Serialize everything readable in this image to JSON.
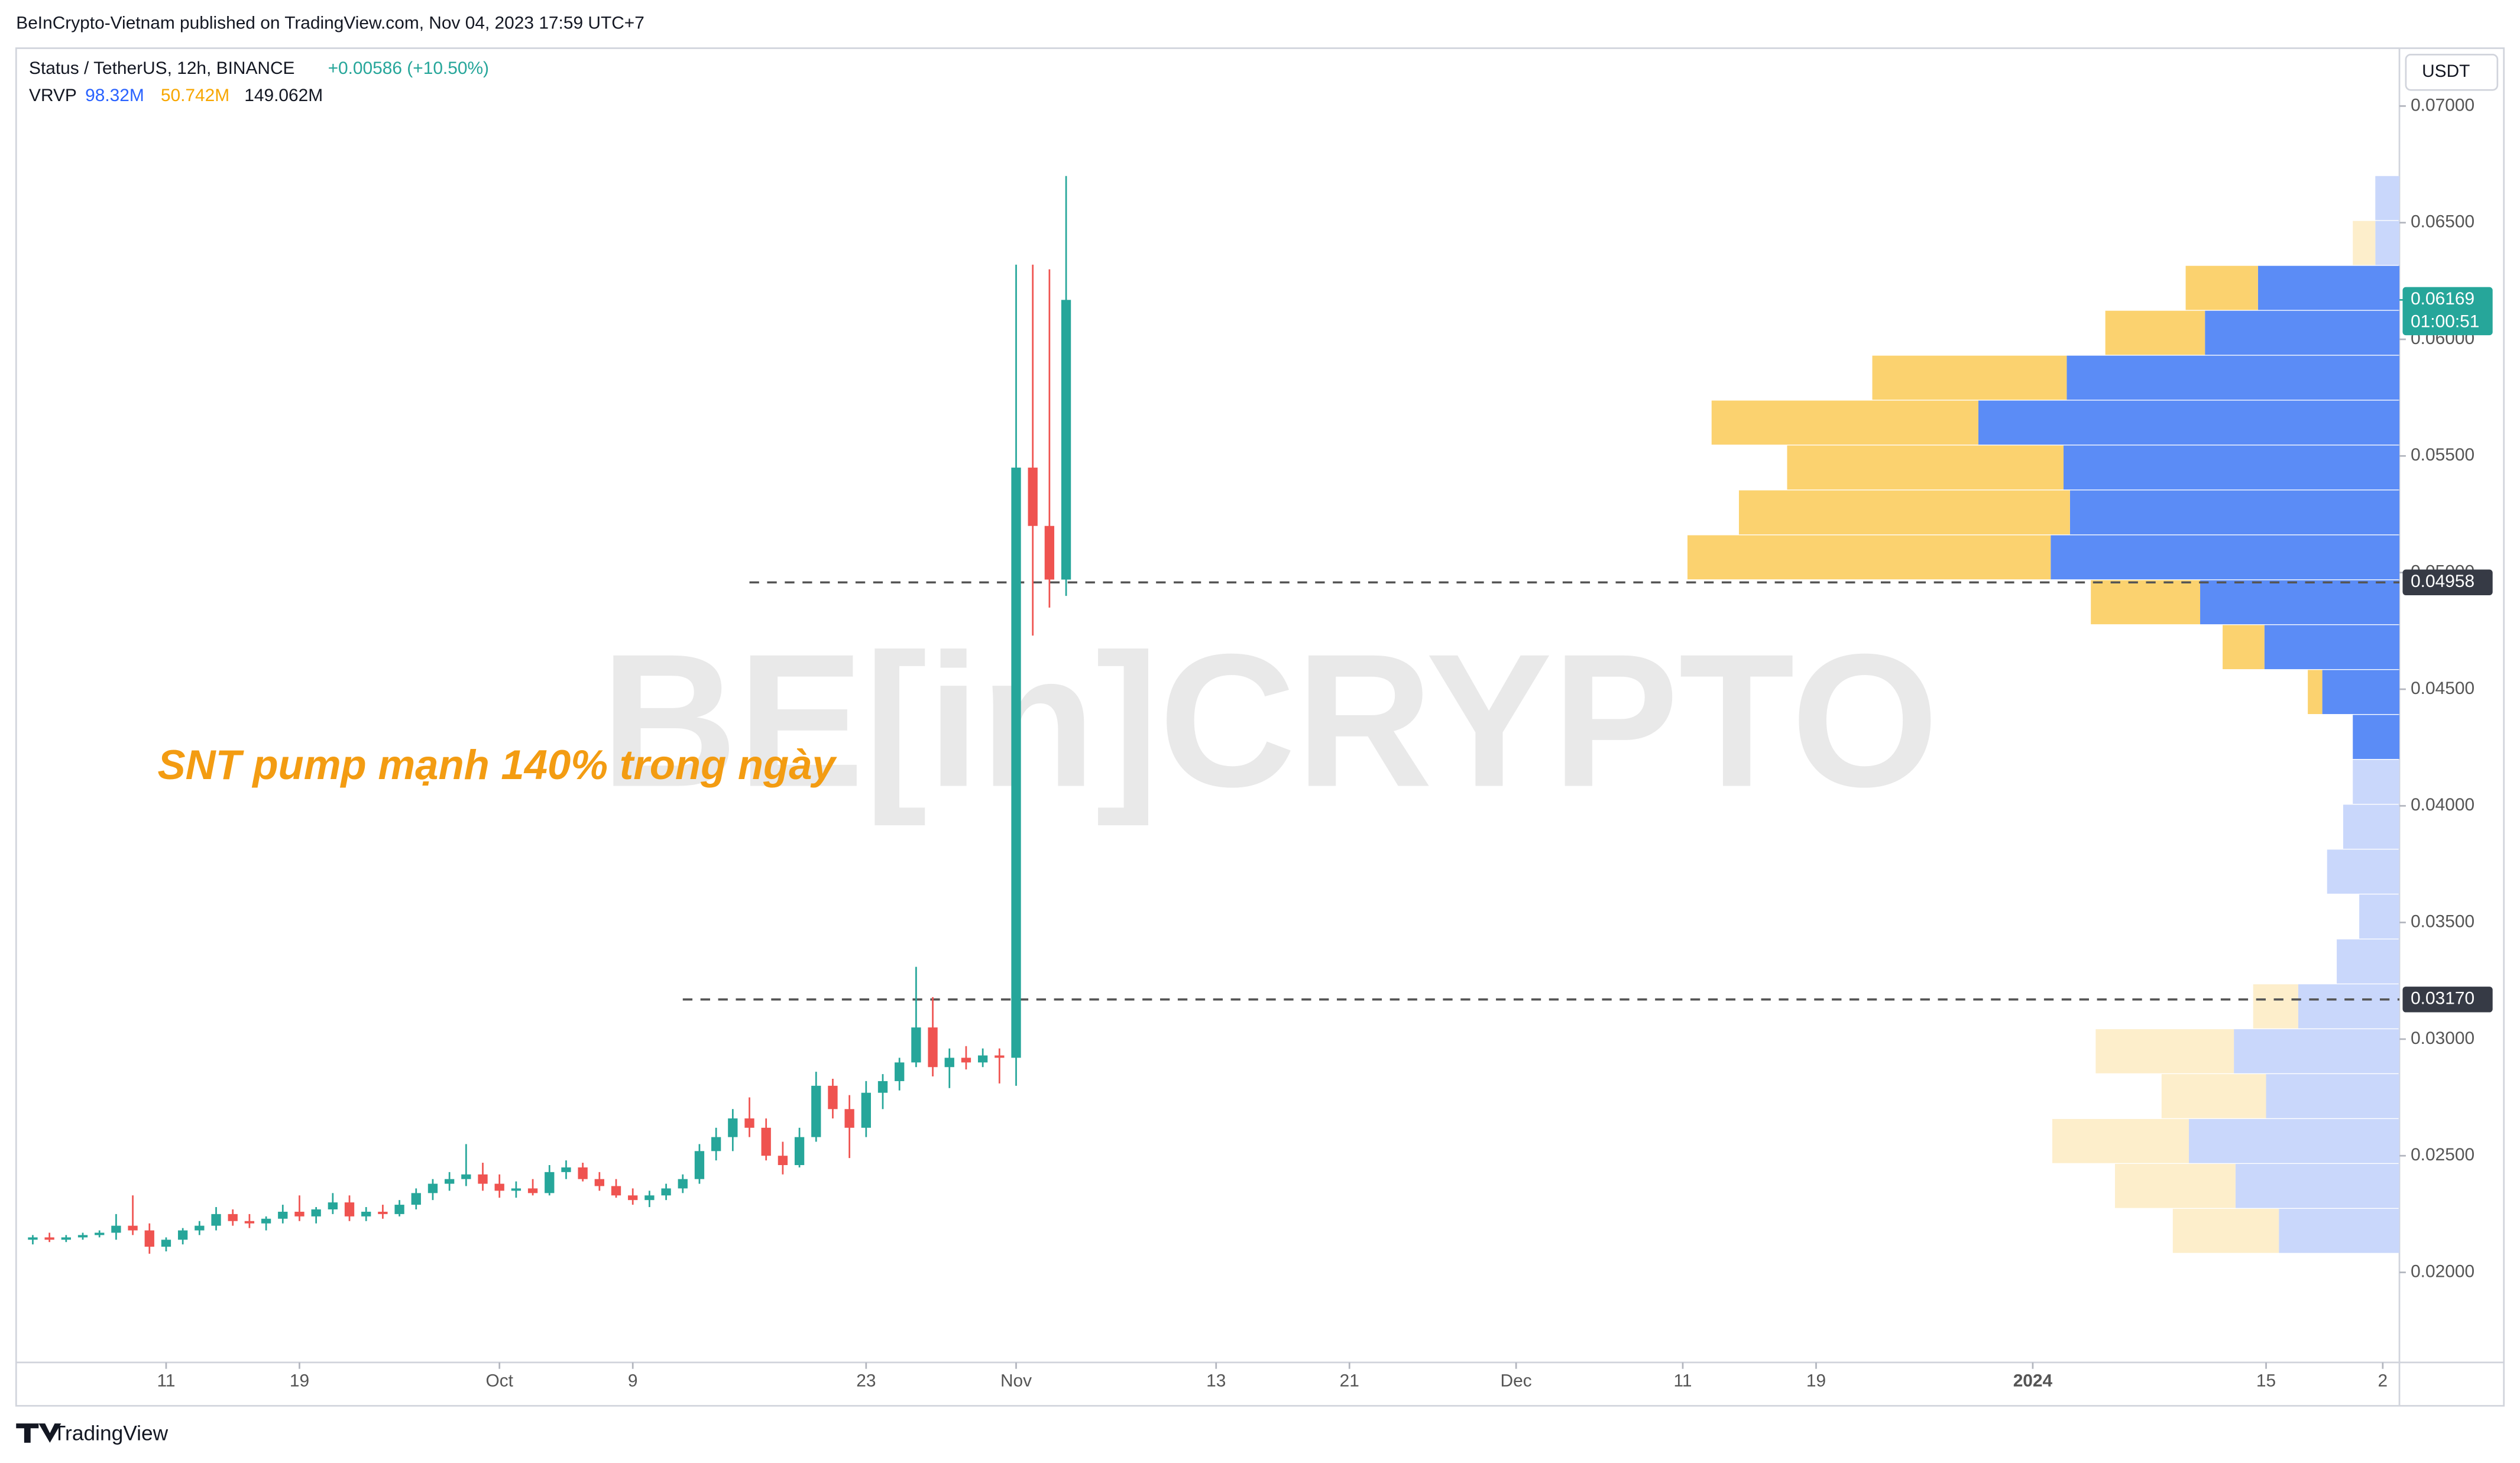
{
  "header": {
    "published": "BeInCrypto-Vietnam published on TradingView.com, Nov 04, 2023 17:59 UTC+7",
    "symbol": "Status / TetherUS, 12h, BINANCE",
    "change": "+0.00586 (+10.50%)",
    "vrvp": {
      "label": "VRVP",
      "up": "98.32M",
      "down": "50.742M",
      "total": "149.062M"
    },
    "currency": "USDT"
  },
  "footer": "TradingView",
  "chart_data": {
    "type": "candlestick",
    "annotation": "SNT pump mạnh 140% trong ngày",
    "watermark": "BE[in]CRYPTO",
    "up_color": "#26a69a",
    "down_color": "#ef5350",
    "x": [
      "2023-09-03",
      "2023-09-04",
      "2023-09-05",
      "2023-09-06",
      "2023-09-07",
      "2023-09-08",
      "2023-09-09",
      "2023-09-10",
      "2023-09-11",
      "2023-09-12",
      "2023-09-13",
      "2023-09-14",
      "2023-09-15",
      "2023-09-16",
      "2023-09-17",
      "2023-09-18",
      "2023-09-19",
      "2023-09-20",
      "2023-09-21",
      "2023-09-22",
      "2023-09-23",
      "2023-09-24",
      "2023-09-25",
      "2023-09-26",
      "2023-09-27",
      "2023-09-28",
      "2023-09-29",
      "2023-09-30",
      "2023-10-01",
      "2023-10-02",
      "2023-10-03",
      "2023-10-04",
      "2023-10-05",
      "2023-10-06",
      "2023-10-07",
      "2023-10-08",
      "2023-10-09",
      "2023-10-10",
      "2023-10-11",
      "2023-10-12",
      "2023-10-13",
      "2023-10-14",
      "2023-10-15",
      "2023-10-16",
      "2023-10-17",
      "2023-10-18",
      "2023-10-19",
      "2023-10-20",
      "2023-10-21",
      "2023-10-22",
      "2023-10-23",
      "2023-10-24",
      "2023-10-25",
      "2023-10-26",
      "2023-10-27",
      "2023-10-28",
      "2023-10-29",
      "2023-10-30",
      "2023-10-31",
      "2023-11-01",
      "2023-11-02",
      "2023-11-03",
      "2023-11-04"
    ],
    "open": [
      0.0214,
      0.0215,
      0.0214,
      0.0215,
      0.0216,
      0.0217,
      0.022,
      0.0218,
      0.0211,
      0.0214,
      0.0218,
      0.022,
      0.0225,
      0.0222,
      0.0221,
      0.0223,
      0.0226,
      0.0224,
      0.0227,
      0.023,
      0.0224,
      0.0226,
      0.0225,
      0.0229,
      0.0234,
      0.0238,
      0.024,
      0.0242,
      0.0238,
      0.0235,
      0.0236,
      0.0234,
      0.0243,
      0.0245,
      0.024,
      0.0237,
      0.0233,
      0.0231,
      0.0233,
      0.0236,
      0.024,
      0.0252,
      0.0258,
      0.0266,
      0.0262,
      0.025,
      0.0246,
      0.0258,
      0.028,
      0.027,
      0.0262,
      0.0277,
      0.0282,
      0.029,
      0.0305,
      0.0288,
      0.0292,
      0.029,
      0.0293,
      0.0292,
      0.0545,
      0.052,
      0.0497
    ],
    "high": [
      0.0216,
      0.0217,
      0.0216,
      0.0217,
      0.0218,
      0.0225,
      0.0233,
      0.0221,
      0.0215,
      0.0219,
      0.0222,
      0.0228,
      0.0227,
      0.0225,
      0.0224,
      0.0229,
      0.0233,
      0.0228,
      0.0234,
      0.0233,
      0.0228,
      0.0229,
      0.0231,
      0.0236,
      0.024,
      0.0243,
      0.0255,
      0.0247,
      0.0242,
      0.0239,
      0.024,
      0.0246,
      0.0248,
      0.0247,
      0.0243,
      0.024,
      0.0236,
      0.0235,
      0.0238,
      0.0242,
      0.0255,
      0.0262,
      0.027,
      0.0275,
      0.0266,
      0.0256,
      0.0262,
      0.0286,
      0.0283,
      0.0276,
      0.0282,
      0.0285,
      0.0292,
      0.0331,
      0.0318,
      0.0296,
      0.0297,
      0.0296,
      0.0296,
      0.0632,
      0.0632,
      0.063,
      0.067
    ],
    "low": [
      0.0212,
      0.0213,
      0.0213,
      0.0214,
      0.0215,
      0.0214,
      0.0216,
      0.0208,
      0.0209,
      0.0212,
      0.0216,
      0.0218,
      0.022,
      0.0219,
      0.0218,
      0.0221,
      0.0222,
      0.0221,
      0.0225,
      0.0222,
      0.0222,
      0.0223,
      0.0224,
      0.0227,
      0.0231,
      0.0235,
      0.0237,
      0.0235,
      0.0232,
      0.0232,
      0.0233,
      0.0233,
      0.024,
      0.0239,
      0.0235,
      0.0232,
      0.0229,
      0.0228,
      0.0231,
      0.0234,
      0.0238,
      0.0248,
      0.0252,
      0.0258,
      0.0248,
      0.0242,
      0.0245,
      0.0256,
      0.0266,
      0.0249,
      0.0258,
      0.027,
      0.0278,
      0.0288,
      0.0284,
      0.0279,
      0.0287,
      0.0288,
      0.0281,
      0.028,
      0.0473,
      0.0485,
      0.049
    ],
    "close": [
      0.0215,
      0.0214,
      0.0215,
      0.0216,
      0.0217,
      0.022,
      0.0218,
      0.0211,
      0.0214,
      0.0218,
      0.022,
      0.0225,
      0.0222,
      0.0221,
      0.0223,
      0.0226,
      0.0224,
      0.0227,
      0.023,
      0.0224,
      0.0226,
      0.0225,
      0.0229,
      0.0234,
      0.0238,
      0.024,
      0.0242,
      0.0238,
      0.0235,
      0.0236,
      0.0234,
      0.0243,
      0.0245,
      0.024,
      0.0237,
      0.0233,
      0.0231,
      0.0233,
      0.0236,
      0.024,
      0.0252,
      0.0258,
      0.0266,
      0.0262,
      0.025,
      0.0246,
      0.0258,
      0.028,
      0.027,
      0.0262,
      0.0277,
      0.0282,
      0.029,
      0.0305,
      0.0288,
      0.0292,
      0.029,
      0.0293,
      0.0292,
      0.0545,
      0.052,
      0.0497,
      0.06169
    ],
    "xlim": [
      "2023-09-02",
      "2024-01-23"
    ],
    "xticks": [
      {
        "value": "2023-09-11",
        "label": "11"
      },
      {
        "value": "2023-09-19",
        "label": "19"
      },
      {
        "value": "2023-10-01",
        "label": "Oct"
      },
      {
        "value": "2023-10-09",
        "label": "9"
      },
      {
        "value": "2023-10-23",
        "label": "23"
      },
      {
        "value": "2023-11-01",
        "label": "Nov"
      },
      {
        "value": "2023-11-13",
        "label": "13"
      },
      {
        "value": "2023-11-21",
        "label": "21"
      },
      {
        "value": "2023-12-01",
        "label": "Dec"
      },
      {
        "value": "2023-12-11",
        "label": "11"
      },
      {
        "value": "2023-12-19",
        "label": "19"
      },
      {
        "value": "2024-01-01",
        "label": "2024"
      },
      {
        "value": "2024-01-15",
        "label": "15"
      },
      {
        "value": "2024-01-22",
        "label": "2"
      }
    ],
    "ylim": [
      0.01614,
      0.07248
    ],
    "yticks": [
      {
        "value": 0.02,
        "label": "0.02000"
      },
      {
        "value": 0.025,
        "label": "0.02500"
      },
      {
        "value": 0.03,
        "label": "0.03000"
      },
      {
        "value": 0.035,
        "label": "0.03500"
      },
      {
        "value": 0.04,
        "label": "0.04000"
      },
      {
        "value": 0.045,
        "label": "0.04500"
      },
      {
        "value": 0.05,
        "label": "0.05000"
      },
      {
        "value": 0.055,
        "label": "0.05500"
      },
      {
        "value": 0.06,
        "label": "0.06000"
      },
      {
        "value": 0.065,
        "label": "0.06500"
      },
      {
        "value": 0.07,
        "label": "0.07000"
      }
    ],
    "grid": false,
    "hlines": [
      {
        "value": 0.04958,
        "label": "0.04958",
        "from": "2023-10-16"
      },
      {
        "value": 0.0317,
        "label": "0.03170",
        "from": "2023-10-12"
      }
    ],
    "last_price": {
      "value": 0.06169,
      "label": "0.06169",
      "countdown": "01:00:51"
    },
    "profile": {
      "bins": [
        0.0208,
        0.022725,
        0.02465,
        0.026575,
        0.0285,
        0.030425,
        0.03235,
        0.034275,
        0.0362,
        0.038125,
        0.04005,
        0.041975,
        0.0439,
        0.045825,
        0.04775,
        0.049675,
        0.0516,
        0.053525,
        0.05545,
        0.057375,
        0.0593,
        0.061225,
        0.06315,
        0.065075,
        0.067
      ],
      "up": [
        3.0,
        4.08,
        5.24,
        3.32,
        4.12,
        2.52,
        1.56,
        1.0,
        1.8,
        1.4,
        1.16,
        1.16,
        1.92,
        3.36,
        4.96,
        8.68,
        8.2,
        8.36,
        10.48,
        8.28,
        4.84,
        3.52,
        0.6,
        0.6
      ],
      "down": [
        2.64,
        3.0,
        3.4,
        2.6,
        3.44,
        1.12,
        0,
        0,
        0,
        0,
        0,
        0,
        0.36,
        1.04,
        2.72,
        9.04,
        8.24,
        6.88,
        6.64,
        4.84,
        2.48,
        1.8,
        0.56,
        0
      ],
      "value_area": [
        0.041975,
        0.06315
      ],
      "up_color": "#5b8cf6",
      "down_color": "#fbd26f",
      "up_color_outside": "#c9d7fb",
      "down_color_outside": "#fdeecb"
    }
  }
}
